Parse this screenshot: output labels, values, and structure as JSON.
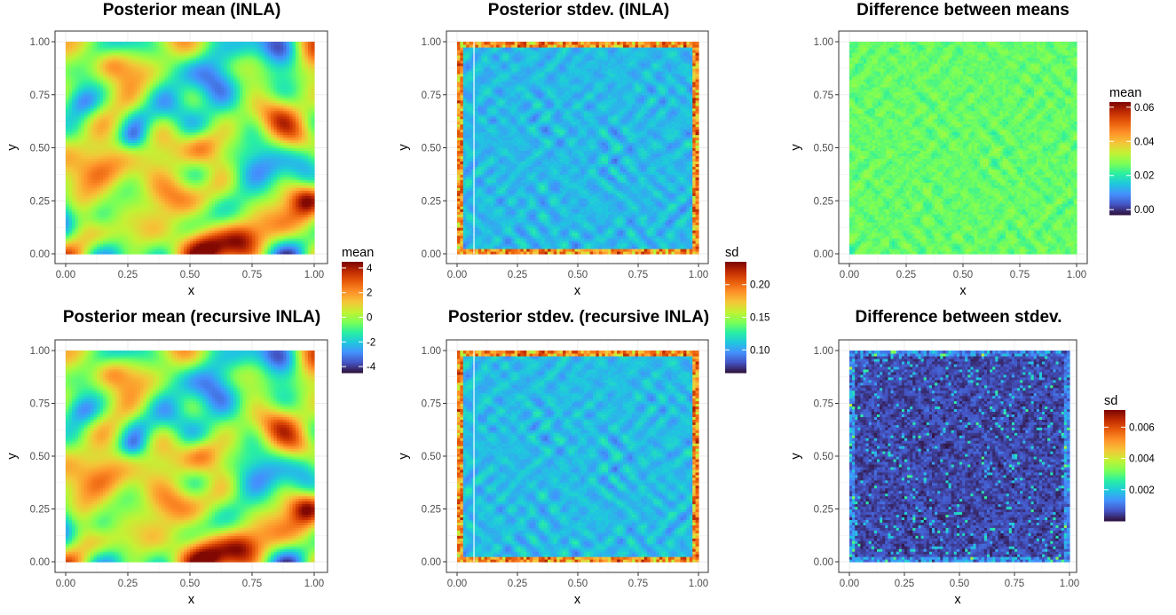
{
  "colors": {
    "turbo": [
      "#30123b",
      "#4454c4",
      "#4490fe",
      "#1fc8de",
      "#29efa2",
      "#7cff55",
      "#c2f234",
      "#f4c638",
      "#fe922a",
      "#e95d0c",
      "#c22c02",
      "#7a0403"
    ],
    "panel_border": "#333333",
    "grid": "#ebebeb"
  },
  "chart_data": [
    {
      "type": "heatmap",
      "title": "Posterior mean (INLA)",
      "xlabel": "x",
      "ylabel": "y",
      "xlim": [
        0,
        1
      ],
      "ylim": [
        0,
        1
      ],
      "x_ticks": [
        "0.00",
        "0.25",
        "0.50",
        "0.75",
        "1.00"
      ],
      "y_ticks": [
        "0.00",
        "0.25",
        "0.50",
        "0.75",
        "1.00"
      ],
      "grid": true,
      "field": "mean",
      "legend": {
        "title": "mean",
        "range": [
          -4.5,
          4.5
        ],
        "ticks": [
          4,
          2,
          0,
          -2,
          -4
        ],
        "tick_labels": [
          "4",
          "2",
          "0",
          "-2",
          "-4"
        ],
        "placement": "right"
      }
    },
    {
      "type": "heatmap",
      "title": "Posterior stdev. (INLA)",
      "xlabel": "x",
      "ylabel": "y",
      "xlim": [
        0,
        1
      ],
      "ylim": [
        0,
        1
      ],
      "x_ticks": [
        "0.00",
        "0.25",
        "0.50",
        "0.75",
        "1.00"
      ],
      "y_ticks": [
        "0.00",
        "0.25",
        "0.50",
        "0.75",
        "1.00"
      ],
      "grid": true,
      "field": "sd",
      "legend": {
        "title": "sd",
        "range": [
          0.065,
          0.235
        ],
        "ticks": [
          0.2,
          0.15,
          0.1
        ],
        "tick_labels": [
          "0.20",
          "0.15",
          "0.10"
        ],
        "placement": "right"
      }
    },
    {
      "type": "heatmap",
      "title": "Difference between means",
      "xlabel": "x",
      "ylabel": "y",
      "xlim": [
        0,
        1
      ],
      "ylim": [
        0,
        1
      ],
      "x_ticks": [
        "0.00",
        "0.25",
        "0.50",
        "0.75",
        "1.00"
      ],
      "y_ticks": [
        "0.00",
        "0.25",
        "0.50",
        "0.75",
        "1.00"
      ],
      "grid": true,
      "field": "mean_diff",
      "legend": {
        "title": "mean",
        "range": [
          -0.003,
          0.063
        ],
        "ticks": [
          0.06,
          0.04,
          0.02,
          0.0
        ],
        "tick_labels": [
          "0.06",
          "0.04",
          "0.02",
          "0.00"
        ],
        "placement": "right"
      }
    },
    {
      "type": "heatmap",
      "title": "Posterior mean (recursive INLA)",
      "xlabel": "x",
      "ylabel": "y",
      "xlim": [
        0,
        1
      ],
      "ylim": [
        0,
        1
      ],
      "x_ticks": [
        "0.00",
        "0.25",
        "0.50",
        "0.75",
        "1.00"
      ],
      "y_ticks": [
        "0.00",
        "0.25",
        "0.50",
        "0.75",
        "1.00"
      ],
      "grid": true,
      "field": "mean"
    },
    {
      "type": "heatmap",
      "title": "Posterior stdev. (recursive INLA)",
      "xlabel": "x",
      "ylabel": "y",
      "xlim": [
        0,
        1
      ],
      "ylim": [
        0,
        1
      ],
      "x_ticks": [
        "0.00",
        "0.25",
        "0.50",
        "0.75",
        "1.00"
      ],
      "y_ticks": [
        "0.00",
        "0.25",
        "0.50",
        "0.75",
        "1.00"
      ],
      "grid": true,
      "field": "sd"
    },
    {
      "type": "heatmap",
      "title": "Difference between stdev.",
      "xlabel": "x",
      "ylabel": "y",
      "xlim": [
        0,
        1
      ],
      "ylim": [
        0,
        1
      ],
      "x_ticks": [
        "0.00",
        "0.25",
        "0.50",
        "0.75",
        "1.00"
      ],
      "y_ticks": [
        "0.00",
        "0.25",
        "0.50",
        "0.75",
        "1.00"
      ],
      "grid": true,
      "field": "sd_diff",
      "legend": {
        "title": "sd",
        "range": [
          0.0,
          0.0071
        ],
        "ticks": [
          0.006,
          0.004,
          0.002
        ],
        "tick_labels": [
          "0.006",
          "0.004",
          "0.002"
        ],
        "placement": "right"
      }
    }
  ]
}
